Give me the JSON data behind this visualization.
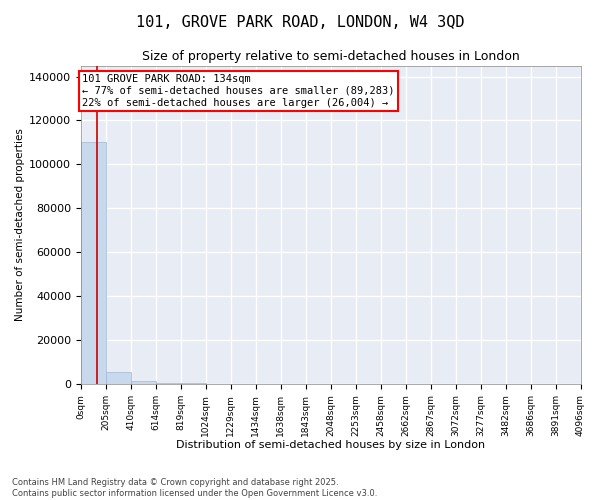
{
  "title": "101, GROVE PARK ROAD, LONDON, W4 3QD",
  "subtitle": "Size of property relative to semi-detached houses in London",
  "xlabel": "Distribution of semi-detached houses by size in London",
  "ylabel": "Number of semi-detached properties",
  "annotation_text": "101 GROVE PARK ROAD: 134sqm\n← 77% of semi-detached houses are smaller (89,283)\n22% of semi-detached houses are larger (26,004) →",
  "bin_edges": [
    0,
    205,
    410,
    614,
    819,
    1024,
    1229,
    1434,
    1638,
    1843,
    2048,
    2253,
    2458,
    2662,
    2867,
    3072,
    3277,
    3482,
    3686,
    3891,
    4096
  ],
  "bar_heights": [
    110000,
    5500,
    1200,
    500,
    280,
    180,
    120,
    90,
    70,
    55,
    40,
    32,
    25,
    20,
    15,
    12,
    10,
    8,
    6,
    4
  ],
  "bar_color": "#c9d9ed",
  "bar_edge_color": "#a0b8d0",
  "vline_color": "#cc0000",
  "vline_x": 134,
  "ylim": [
    0,
    145000
  ],
  "yticks": [
    0,
    20000,
    40000,
    60000,
    80000,
    100000,
    120000,
    140000
  ],
  "background_color": "#e8ecf5",
  "grid_color": "#ffffff",
  "footer": "Contains HM Land Registry data © Crown copyright and database right 2025.\nContains public sector information licensed under the Open Government Licence v3.0.",
  "xtick_labels": [
    "0sqm",
    "205sqm",
    "410sqm",
    "614sqm",
    "819sqm",
    "1024sqm",
    "1229sqm",
    "1434sqm",
    "1638sqm",
    "1843sqm",
    "2048sqm",
    "2253sqm",
    "2458sqm",
    "2662sqm",
    "2867sqm",
    "3072sqm",
    "3277sqm",
    "3482sqm",
    "3686sqm",
    "3891sqm",
    "4096sqm"
  ],
  "title_fontsize": 11,
  "subtitle_fontsize": 9,
  "ylabel_fontsize": 7.5,
  "xlabel_fontsize": 8,
  "ytick_fontsize": 8,
  "xtick_fontsize": 6.5,
  "annotation_fontsize": 7.5,
  "footer_fontsize": 6
}
